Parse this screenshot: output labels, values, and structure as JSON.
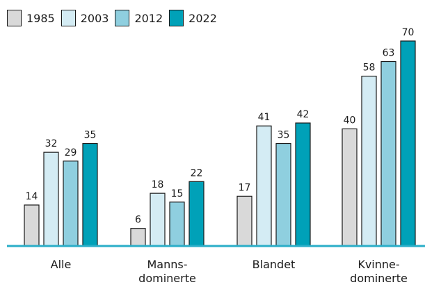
{
  "chart_data": {
    "type": "bar",
    "categories": [
      [
        "Alle"
      ],
      [
        "Manns-",
        "dominerte"
      ],
      [
        "Blandet"
      ],
      [
        "Kvinne-",
        "dominerte"
      ]
    ],
    "series": [
      {
        "name": "1985",
        "color": "#d9d9d9",
        "values": [
          14,
          6,
          17,
          40
        ]
      },
      {
        "name": "2003",
        "color": "#d4ecf4",
        "values": [
          32,
          18,
          41,
          58
        ]
      },
      {
        "name": "2012",
        "color": "#8fcfdf",
        "values": [
          29,
          15,
          35,
          63
        ]
      },
      {
        "name": "2022",
        "color": "#00a1b8",
        "values": [
          35,
          22,
          42,
          70
        ]
      }
    ],
    "ylim": [
      0,
      70
    ],
    "axis_color": "#2aaec8",
    "legend_position": "top-left",
    "grid": false
  }
}
